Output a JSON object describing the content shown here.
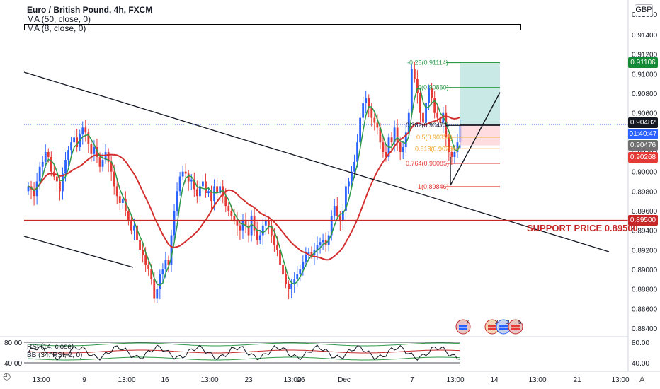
{
  "header": {
    "title": "Euro / British Pound, 4h, FXCM",
    "ma50": "MA (50, close, 0)",
    "ma8": "MA (8, close, 0)"
  },
  "currency": "GBP",
  "price_axis": {
    "ticks": [
      "0.91400",
      "0.91200",
      "0.91000",
      "0.90800",
      "0.90600",
      "0.90400",
      "0.90200",
      "0.90000",
      "0.89800",
      "0.89600",
      "0.89400",
      "0.89200",
      "0.89000",
      "0.88800",
      "0.88600",
      "0.88400"
    ],
    "top_partial": "0.91600"
  },
  "price_tags": [
    {
      "label": "0.91106",
      "color": "#138a36"
    },
    {
      "label": "0.90482",
      "color": "#131722"
    },
    {
      "label": "01:40:47",
      "color": "#2962ff"
    },
    {
      "label": "0.90476",
      "color": "#707070"
    },
    {
      "label": "0.90268",
      "color": "#e53935"
    },
    {
      "label": "0.89500",
      "color": "#c62828"
    }
  ],
  "support_label": "SUPPORT PRICE 0.89500",
  "fib_labels": [
    {
      "text": "-0.25(0.91114)",
      "color": "#2e9a49"
    },
    {
      "text": "0(0.90860)",
      "color": "#2e9a49"
    },
    {
      "text": "0.382(0.90473)",
      "color": "#131722"
    },
    {
      "text": "0.5(0.90353)",
      "color": "#f5a623"
    },
    {
      "text": "0.618(0.90234)",
      "color": "#f5a623"
    },
    {
      "text": "0.764(0.90085)",
      "color": "#e53935"
    },
    {
      "text": "1(0.89846)",
      "color": "#e53935"
    }
  ],
  "time_axis": [
    "13:00",
    "9",
    "13:00",
    "16",
    "13:00",
    "23",
    "13:00",
    "26",
    "Dec",
    "7",
    "13:00",
    "14",
    "13:00",
    "21",
    "13:00"
  ],
  "rsi": {
    "legend_rsi": "RSI (14, close)",
    "legend_bb": "BB (34, RSI, 2, 0)",
    "axis_top": "80.00",
    "axis_bottom": "40.00",
    "left_top": "80.00",
    "left_bottom": "40.00"
  },
  "event_badges": [
    {
      "count": "7"
    },
    {
      "count": "2"
    },
    {
      "count": "2"
    },
    {
      "count": "5"
    }
  ],
  "colors": {
    "bull": "#2962ff",
    "bear": "#e53935",
    "ma50": "#d32f2f",
    "ma8": "#2e9a49",
    "support": "#c62828",
    "trend": "#131722"
  },
  "footer_logo": "A"
}
